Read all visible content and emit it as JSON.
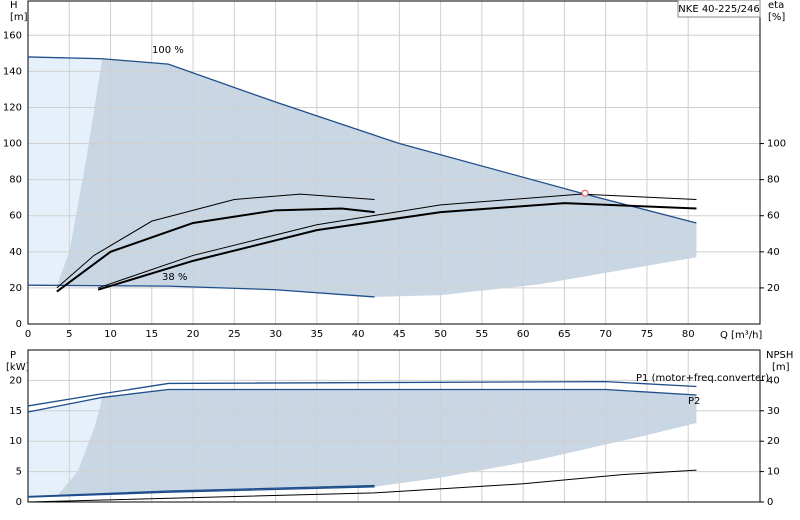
{
  "chart_data": [
    {
      "type": "line",
      "title": "NKE 40-225/246",
      "y_label": "H",
      "y_unit": "[m]",
      "y2_label": "eta",
      "y2_unit": "[%]",
      "x_label": "Q [m³/h]",
      "xlim": [
        0,
        88.7
      ],
      "xticks": [
        0,
        5,
        10,
        15,
        20,
        25,
        30,
        35,
        40,
        45,
        50,
        55,
        60,
        65,
        70,
        75,
        80
      ],
      "xtick_labels": true,
      "ylim": [
        0,
        179
      ],
      "yticks": [
        0,
        20,
        40,
        60,
        80,
        100,
        120,
        140,
        160
      ],
      "y2lim": [
        0,
        179
      ],
      "y2ticks": [
        20,
        40,
        60,
        80,
        100
      ],
      "grid": true,
      "annotations": [
        "100 %",
        "38 %"
      ],
      "areas": [
        {
          "color": "#e6f0fa",
          "x": [
            0,
            3.5,
            5,
            7,
            9,
            0
          ],
          "values": [
            21.5,
            21.3,
            40,
            90,
            147,
            148
          ]
        },
        {
          "color": "#c9d6e3",
          "x": [
            3.5,
            17,
            30,
            42,
            50,
            62,
            81,
            81,
            67.5,
            45,
            30,
            17,
            9,
            7,
            5
          ],
          "values": [
            21.3,
            21,
            19,
            15,
            16,
            22,
            37,
            56,
            72,
            100,
            123,
            144,
            147,
            90,
            40
          ]
        }
      ],
      "series": [
        {
          "color": "#1f4e8c",
          "width": 1.3,
          "x": [
            0,
            9,
            17,
            30,
            45,
            67.5,
            81
          ],
          "values": [
            148,
            147,
            144,
            123,
            100,
            72,
            56
          ]
        },
        {
          "color": "#1f4e8c",
          "width": 1.3,
          "x": [
            0,
            17,
            30,
            42
          ],
          "values": [
            21.5,
            21,
            19,
            15
          ]
        },
        {
          "color": "#000000",
          "width": 1,
          "axis": "y2",
          "x": [
            3.5,
            8,
            15,
            25,
            33,
            42
          ],
          "values": [
            20,
            38,
            57,
            69,
            72,
            69
          ]
        },
        {
          "color": "#000000",
          "width": 2,
          "axis": "y2",
          "x": [
            3.5,
            10,
            20,
            30,
            38,
            42
          ],
          "values": [
            18,
            40,
            56,
            63,
            64,
            62
          ]
        },
        {
          "color": "#000000",
          "width": 1,
          "axis": "y2",
          "x": [
            8.5,
            20,
            35,
            50,
            67,
            81
          ],
          "values": [
            20,
            38,
            55,
            66,
            72,
            69
          ]
        },
        {
          "color": "#000000",
          "width": 2,
          "axis": "y2",
          "x": [
            8.5,
            20,
            35,
            50,
            65,
            81
          ],
          "values": [
            19,
            35,
            52,
            62,
            67,
            64
          ]
        },
        {
          "color": "#e06666",
          "marker": true,
          "x": [
            67.5
          ],
          "values": [
            72.5
          ]
        }
      ]
    },
    {
      "type": "line",
      "y_label": "P",
      "y_unit": "[kW]",
      "y2_label": "NPSH",
      "y2_unit": "[m]",
      "xlim": [
        0,
        88.7
      ],
      "xticks": [
        0,
        5,
        10,
        15,
        20,
        25,
        30,
        35,
        40,
        45,
        50,
        55,
        60,
        65,
        70,
        75,
        80
      ],
      "xtick_labels": false,
      "ylim": [
        0,
        25
      ],
      "yticks": [
        0,
        5,
        10,
        15,
        20
      ],
      "y2lim": [
        0,
        50
      ],
      "y2ticks": [
        0,
        10,
        20,
        30,
        40
      ],
      "grid": true,
      "annotations": [
        "P1 (motor+freq.converter)",
        "P2"
      ],
      "areas": [
        {
          "color": "#e6f0fa",
          "x": [
            0,
            3.5,
            6,
            8,
            9,
            0
          ],
          "values": [
            0.8,
            0.9,
            5,
            12,
            17.2,
            14.8
          ]
        },
        {
          "color": "#c9d6e3",
          "x": [
            3.5,
            17,
            42,
            50,
            62,
            75,
            81,
            81,
            70,
            17,
            9,
            8,
            6
          ],
          "values": [
            0.9,
            1.6,
            2.5,
            4,
            7,
            11,
            13,
            17.6,
            18.5,
            18.5,
            17.2,
            12,
            5
          ]
        }
      ],
      "series": [
        {
          "color": "#1f4e8c",
          "width": 1.3,
          "x": [
            0,
            9,
            17,
            70,
            81
          ],
          "values": [
            15.8,
            17.8,
            19.5,
            19.8,
            19
          ]
        },
        {
          "color": "#1f4e8c",
          "width": 1.3,
          "x": [
            0,
            9,
            17,
            70,
            81
          ],
          "values": [
            14.8,
            17.2,
            18.5,
            18.5,
            17.6
          ]
        },
        {
          "color": "#1f4e8c",
          "width": 1.3,
          "x": [
            0,
            17,
            42
          ],
          "values": [
            0.9,
            1.8,
            2.7
          ]
        },
        {
          "color": "#1f4e8c",
          "width": 1.3,
          "x": [
            0,
            17,
            42
          ],
          "values": [
            0.8,
            1.6,
            2.5
          ]
        },
        {
          "color": "#000000",
          "width": 1,
          "axis": "y2",
          "x": [
            0,
            42,
            60,
            72,
            81
          ],
          "values": [
            0,
            3,
            6,
            9,
            10.5
          ]
        }
      ]
    }
  ]
}
